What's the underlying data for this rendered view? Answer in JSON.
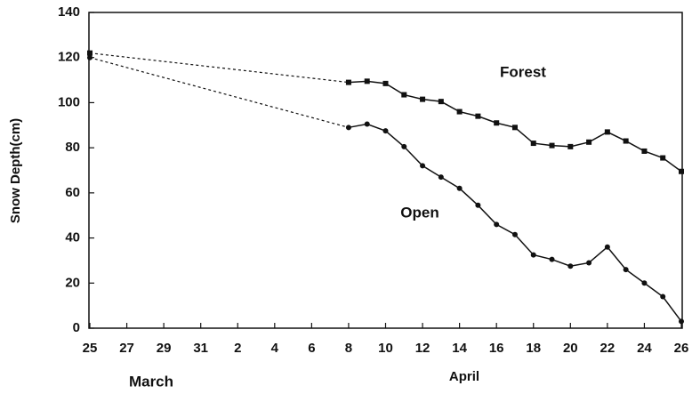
{
  "chart_data": {
    "type": "line",
    "y_label": "Snow Depth(cm)",
    "months": [
      "March",
      "April"
    ],
    "annotations": [
      "Forest",
      "Open"
    ],
    "categories": [
      "25",
      null,
      "27",
      null,
      "29",
      null,
      "31",
      null,
      "2",
      null,
      "4",
      null,
      "6",
      null,
      "8",
      null,
      "10",
      null,
      "12",
      null,
      "14",
      null,
      "16",
      null,
      "18",
      null,
      "20",
      null,
      "22",
      null,
      "24",
      null,
      "26"
    ],
    "ylim": [
      0,
      140
    ],
    "yticks": [
      0,
      20,
      40,
      60,
      80,
      100,
      120,
      140
    ],
    "grid": false,
    "gap_style": "dashed",
    "series": [
      {
        "name": "Forest",
        "color": "#111111",
        "marker": "square",
        "values": [
          122,
          null,
          null,
          null,
          null,
          null,
          null,
          null,
          null,
          null,
          null,
          null,
          null,
          null,
          109,
          109.5,
          108.5,
          103.5,
          101.5,
          100.5,
          96,
          94,
          91,
          89,
          82,
          81,
          80.5,
          82.5,
          87,
          83,
          78.5,
          75.5,
          69.5
        ]
      },
      {
        "name": "Open",
        "color": "#111111",
        "marker": "circle",
        "values": [
          120,
          null,
          null,
          null,
          null,
          null,
          null,
          null,
          null,
          null,
          null,
          null,
          null,
          null,
          89,
          90.5,
          87.5,
          80.5,
          72,
          67,
          62,
          54.5,
          46,
          41.5,
          32.5,
          30.5,
          27.5,
          29,
          36,
          26,
          20,
          14,
          3
        ]
      }
    ]
  }
}
